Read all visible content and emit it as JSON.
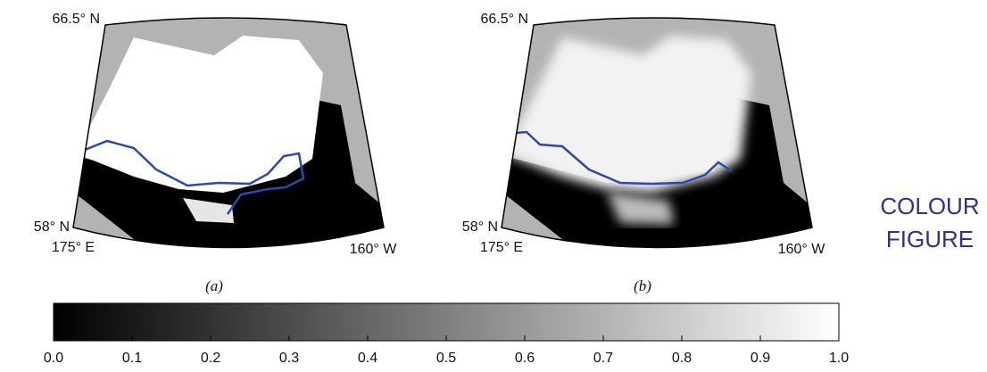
{
  "panels": [
    {
      "label": "(a)",
      "lat_labels": [
        "66.5° N",
        "58° N"
      ],
      "lon_labels": [
        "175° E",
        "160° W"
      ]
    },
    {
      "label": "(b)",
      "lat_labels": [
        "66.5° N",
        "58° N"
      ],
      "lon_labels": [
        "175° E",
        "160° W"
      ]
    }
  ],
  "colorbar": {
    "ticks": [
      {
        "value": 0,
        "label": "0.0"
      },
      {
        "value": 0.1,
        "label": "0.1"
      },
      {
        "value": 0.2,
        "label": "0.2"
      },
      {
        "value": 0.3,
        "label": "0.3"
      },
      {
        "value": 0.4,
        "label": "0.4"
      },
      {
        "value": 0.5,
        "label": "0.5"
      },
      {
        "value": 0.6,
        "label": "0.6"
      },
      {
        "value": 0.7,
        "label": "0.7"
      },
      {
        "value": 0.8,
        "label": "0.8"
      },
      {
        "value": 0.9,
        "label": "0.9"
      },
      {
        "value": 1,
        "label": "1.0"
      }
    ]
  },
  "note": [
    "COLOUR",
    "FIGURE"
  ]
}
